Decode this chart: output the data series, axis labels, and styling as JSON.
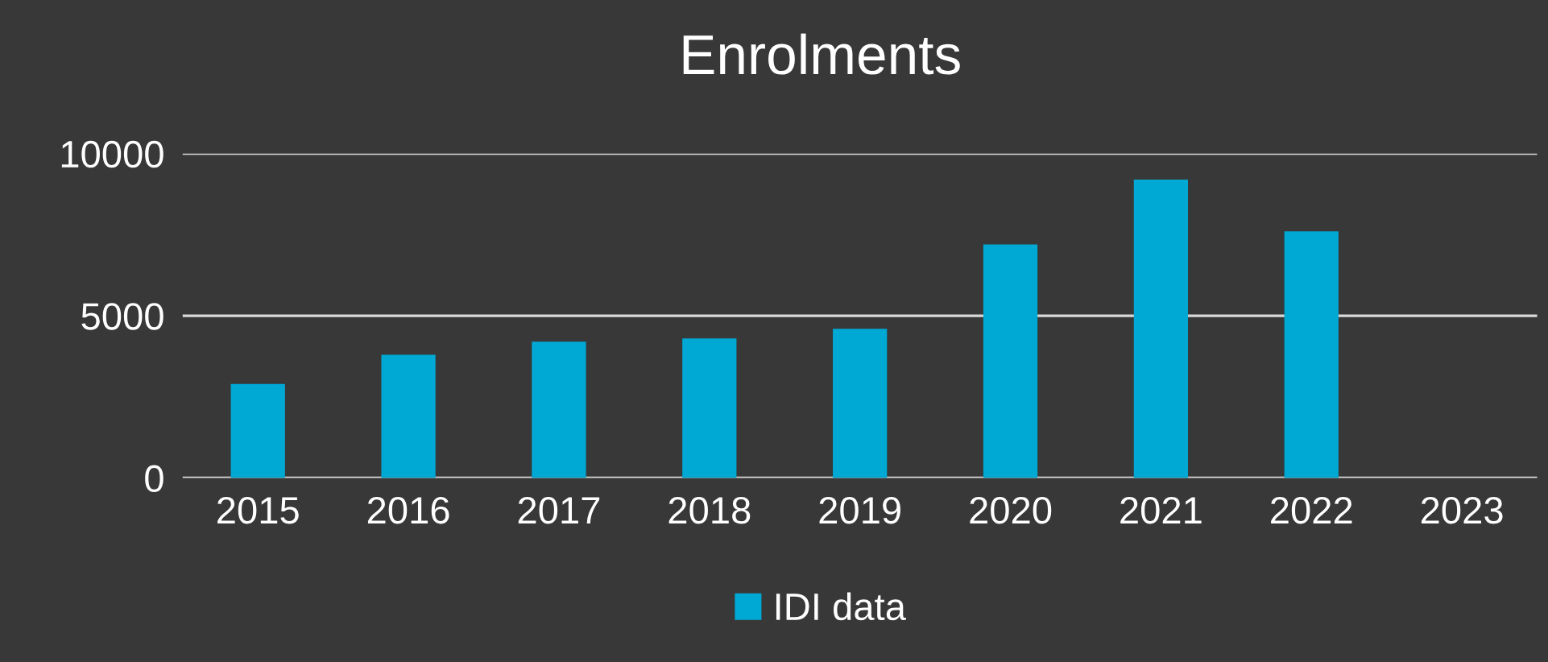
{
  "chart_data": {
    "type": "bar",
    "title": "Enrolments",
    "categories": [
      "2015",
      "2016",
      "2017",
      "2018",
      "2019",
      "2020",
      "2021",
      "2022",
      "2023"
    ],
    "series": [
      {
        "name": "IDI data",
        "color": "#00a8d4",
        "values": [
          2900,
          3800,
          4200,
          4300,
          4600,
          7200,
          9200,
          7600,
          null
        ]
      }
    ],
    "ylim": [
      0,
      10000
    ],
    "yticks": [
      0,
      5000,
      10000
    ],
    "grid": "y",
    "legend": "bottom"
  }
}
